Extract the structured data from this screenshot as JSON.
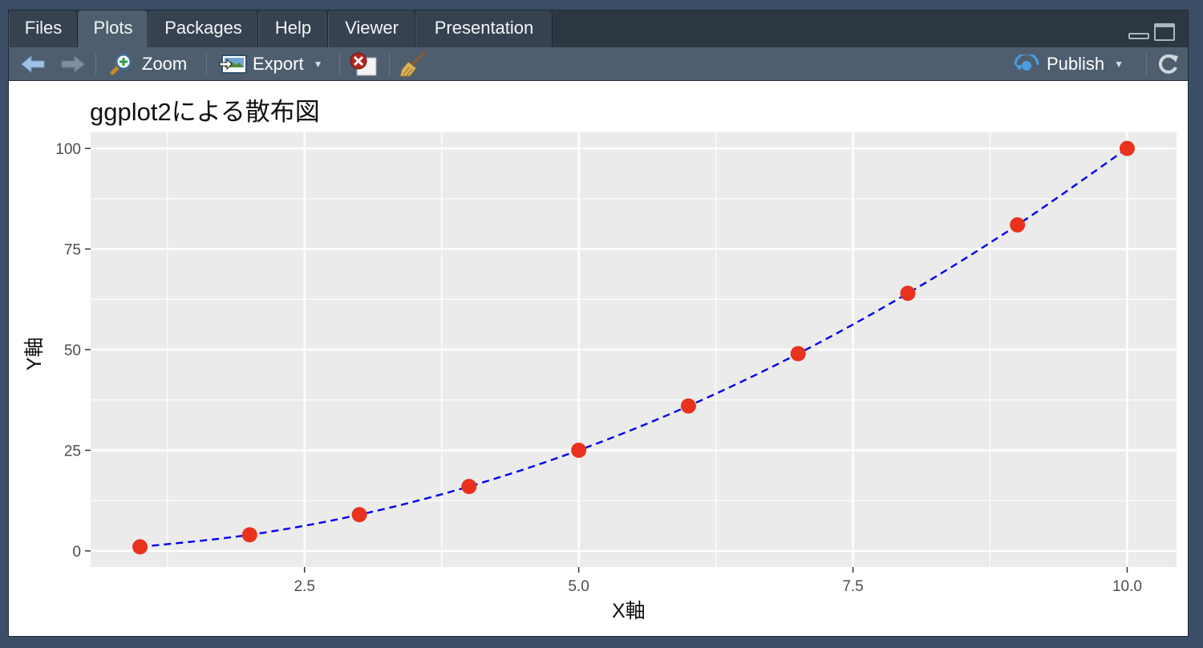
{
  "tabs": [
    {
      "label": "Files"
    },
    {
      "label": "Plots"
    },
    {
      "label": "Packages"
    },
    {
      "label": "Help"
    },
    {
      "label": "Viewer"
    },
    {
      "label": "Presentation"
    }
  ],
  "active_tab": "Plots",
  "toolbar": {
    "zoom_label": "Zoom",
    "export_label": "Export",
    "publish_label": "Publish"
  },
  "colors": {
    "point": "#e8321e",
    "line": "#0000ee",
    "panel": "#ebebeb",
    "grid": "#ffffff"
  },
  "chart_data": {
    "type": "scatter",
    "title": "ggplot2による散布図",
    "xlabel": "X軸",
    "ylabel": "Y軸",
    "xlim": [
      0.55,
      10.45
    ],
    "ylim": [
      -4,
      104
    ],
    "x_ticks": [
      2.5,
      5.0,
      7.5,
      10.0
    ],
    "x_tick_labels": [
      "2.5",
      "5.0",
      "7.5",
      "10.0"
    ],
    "y_ticks": [
      0,
      25,
      50,
      75,
      100
    ],
    "y_tick_labels": [
      "0",
      "25",
      "50",
      "75",
      "100"
    ],
    "grid": true,
    "series": [
      {
        "kind": "points",
        "color": "#e8321e",
        "x": [
          1,
          2,
          3,
          4,
          5,
          6,
          7,
          8,
          9,
          10
        ],
        "y": [
          1,
          4,
          9,
          16,
          25,
          36,
          49,
          64,
          81,
          100
        ]
      },
      {
        "kind": "dashed-line",
        "color": "#0000ee",
        "x": [
          1,
          2,
          3,
          4,
          5,
          6,
          7,
          8,
          9,
          10
        ],
        "y": [
          1,
          4,
          9,
          16,
          25,
          36,
          49,
          64,
          81,
          100
        ]
      }
    ]
  }
}
